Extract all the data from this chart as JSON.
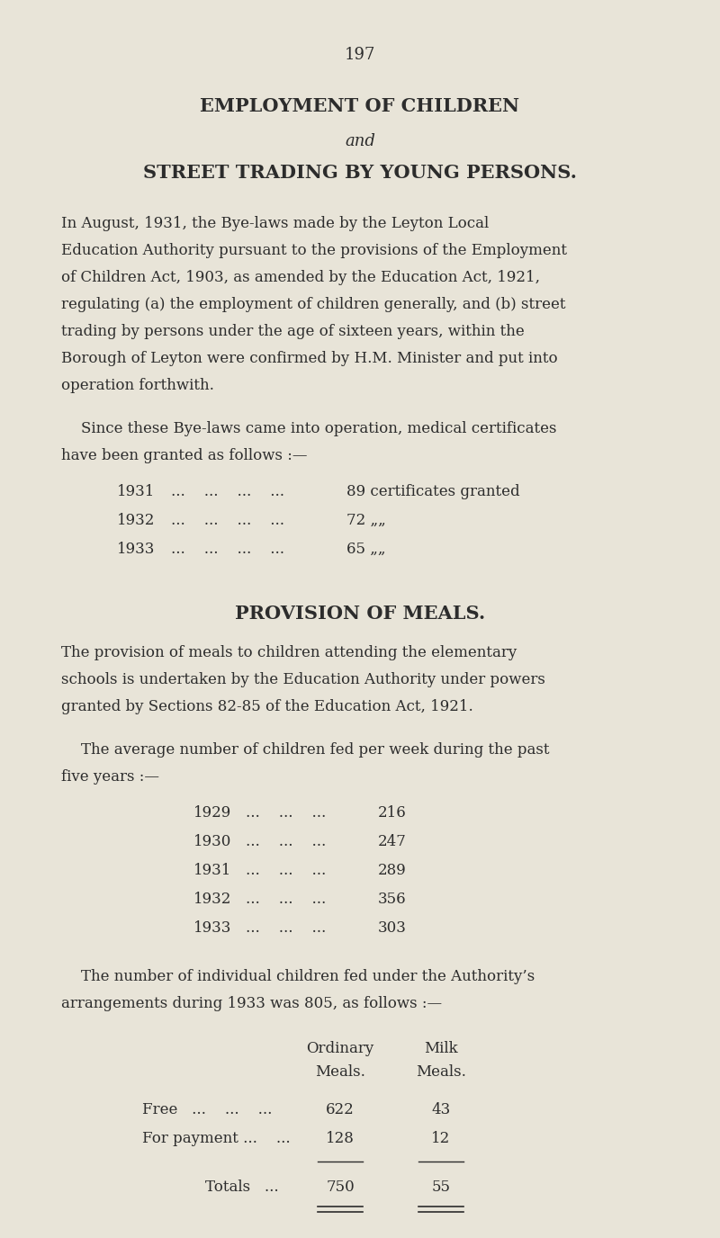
{
  "page_number": "197",
  "bg_color": "#e8e4d8",
  "text_color": "#2c2c2c",
  "title1": "EMPLOYMENT OF CHILDREN",
  "title2": "and",
  "title3": "STREET TRADING BY YOUNG PERSONS.",
  "section2_title": "PROVISION OF MEALS.",
  "cert_years": [
    "1931",
    "1932",
    "1933"
  ],
  "cert_values": [
    "89 certificates granted",
    "72 „„",
    "65 „„"
  ],
  "avg_years": [
    "1929",
    "1930",
    "1931",
    "1932",
    "1933"
  ],
  "avg_values": [
    "216",
    "247",
    "289",
    "356",
    "303"
  ],
  "table_header1": "Ordinary",
  "table_header2": "Meals.",
  "table_header3": "Milk",
  "table_header4": "Meals.",
  "row1_label": "Free   ...    ...    ...",
  "row1_v1": "622",
  "row1_v2": "43",
  "row2_label": "For payment ...    ...",
  "row2_v1": "128",
  "row2_v2": "12",
  "totals_label": "Totals   ...",
  "totals_v1": "750",
  "totals_v2": "55",
  "para1_lines": [
    "In August, 1931, the Bye-laws made by the Leyton Local",
    "Education Authority pursuant to the provisions of the Employment",
    "of Children Act, 1903, as amended by the Education Act, 1921,",
    "regulating (a) the employment of children generally, and (b) street",
    "trading by persons under the age of sixteen years, within the",
    "Borough of Leyton were confirmed by H.M. Minister and put into",
    "operation forthwith."
  ],
  "para2_line1": "Since these Bye-laws came into operation, medical certificates",
  "para2_line2": "have been granted as follows :—",
  "para3_lines": [
    "The provision of meals to children attending the elementary",
    "schools is undertaken by the Education Authority under powers",
    "granted by Sections 82-85 of the Education Act, 1921."
  ],
  "para4_line1": "The average number of children fed per week during the past",
  "para4_line2": "five years :—",
  "para5_line1": "The number of individual children fed under the Authority’s",
  "para5_line2": "arrangements during 1933 was 805, as follows :—"
}
